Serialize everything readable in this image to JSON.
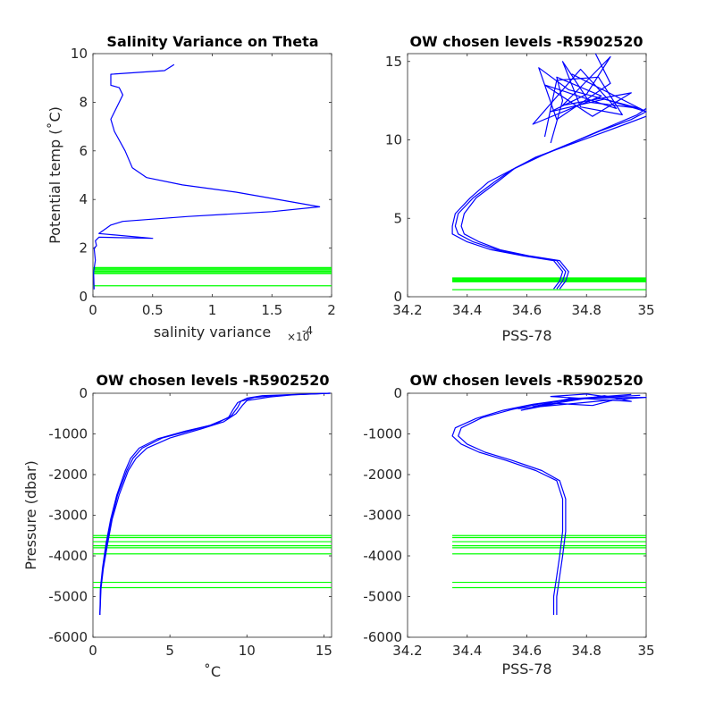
{
  "colors": {
    "profile": "#0000ff",
    "levels": "#00ff00",
    "axis": "#262626"
  },
  "chart_data": [
    {
      "id": "p1",
      "type": "line",
      "title": "Salinity Variance on Theta",
      "xlabel": "salinity variance",
      "x_multiplier": "×10",
      "x_multiplier_exp": "-4",
      "ylabel": "Potential temp (˚C)",
      "xlim": [
        0,
        2
      ],
      "ylim": [
        0,
        10
      ],
      "xticks": [
        0,
        0.5,
        1,
        1.5,
        2
      ],
      "xtick_labels": [
        "0",
        "0.5",
        "1",
        "1.5",
        "2"
      ],
      "yticks": [
        0,
        2,
        4,
        6,
        8,
        10
      ],
      "ytick_labels": [
        "0",
        "2",
        "4",
        "6",
        "8",
        "10"
      ],
      "grid": false,
      "series": [
        {
          "x": [
            0.01,
            0.005,
            0.02,
            0.01,
            0.03,
            0.02,
            0.05,
            0.5,
            0.05,
            0.15,
            0.25,
            0.8,
            1.5,
            1.9,
            1.2,
            0.75,
            0.45,
            0.33,
            0.27,
            0.18,
            0.15,
            0.22,
            0.25,
            0.22,
            0.15,
            0.15,
            0.6,
            0.68
          ],
          "y": [
            0.3,
            1.0,
            1.5,
            2.0,
            2.1,
            2.3,
            2.45,
            2.4,
            2.6,
            2.95,
            3.1,
            3.3,
            3.5,
            3.7,
            4.3,
            4.6,
            4.9,
            5.3,
            6.0,
            6.8,
            7.3,
            8.0,
            8.3,
            8.6,
            8.7,
            9.15,
            9.3,
            9.55
          ]
        }
      ],
      "levels_y": [
        0.45,
        0.95,
        1.0,
        1.05,
        1.1,
        1.15,
        1.2
      ]
    },
    {
      "id": "p2",
      "type": "line",
      "title": "OW chosen levels -R5902520",
      "xlabel": "PSS-78",
      "ylabel": "",
      "xlim": [
        34.2,
        35
      ],
      "ylim": [
        0,
        15.5
      ],
      "xticks": [
        34.2,
        34.4,
        34.6,
        34.8,
        35
      ],
      "xtick_labels": [
        "34.2",
        "34.4",
        "34.6",
        "34.8",
        "35"
      ],
      "yticks": [
        0,
        5,
        10,
        15
      ],
      "ytick_labels": [
        "0",
        "5",
        "10",
        "15"
      ],
      "grid": false,
      "series": [
        {
          "x": [
            34.7,
            34.72,
            34.73,
            34.7,
            34.6,
            34.5,
            34.42,
            34.37,
            34.36,
            34.37,
            34.42,
            34.49,
            34.55,
            34.65,
            34.75,
            34.85,
            34.95,
            35.0
          ],
          "y": [
            0.5,
            1.0,
            1.6,
            2.3,
            2.6,
            3.0,
            3.5,
            4.0,
            4.5,
            5.3,
            6.3,
            7.3,
            8.1,
            9.0,
            9.8,
            10.6,
            11.3,
            11.8
          ]
        },
        {
          "x": [
            34.69,
            34.71,
            34.72,
            34.69,
            34.59,
            34.48,
            34.4,
            34.35,
            34.35,
            34.36,
            34.41,
            34.47,
            34.54,
            34.63,
            34.73,
            34.83,
            34.93,
            35.0
          ],
          "y": [
            0.5,
            1.0,
            1.6,
            2.3,
            2.6,
            3.0,
            3.5,
            4.0,
            4.5,
            5.3,
            6.3,
            7.3,
            8.0,
            8.9,
            9.6,
            10.3,
            11.0,
            11.5
          ]
        },
        {
          "x": [
            34.71,
            34.73,
            34.74,
            34.71,
            34.61,
            34.51,
            34.44,
            34.39,
            34.38,
            34.39,
            34.43,
            34.5,
            34.56,
            34.66,
            34.76,
            34.87,
            34.97,
            35.0
          ],
          "y": [
            0.5,
            1.0,
            1.6,
            2.3,
            2.6,
            3.0,
            3.5,
            4.0,
            4.5,
            5.3,
            6.3,
            7.3,
            8.2,
            9.1,
            9.9,
            10.8,
            11.6,
            12.0
          ]
        },
        {
          "x": [
            34.68,
            34.72,
            34.7,
            34.85,
            34.62,
            34.78,
            34.9,
            34.66,
            34.82,
            34.95,
            34.72,
            34.88,
            34.8,
            34.68,
            34.86,
            35.0,
            34.75
          ],
          "y": [
            9.8,
            12.5,
            14.0,
            12.8,
            11.0,
            14.5,
            12.0,
            13.5,
            11.5,
            13.0,
            12.2,
            15.3,
            12.9,
            11.8,
            12.6,
            11.8,
            14.2
          ]
        },
        {
          "x": [
            34.66,
            34.7,
            34.84,
            34.92,
            34.78,
            34.72,
            34.81,
            34.98,
            34.74,
            34.64,
            34.7,
            34.88,
            34.83
          ],
          "y": [
            10.2,
            13.8,
            14.0,
            11.6,
            12.1,
            15.0,
            12.4,
            12.0,
            13.2,
            14.6,
            11.3,
            13.6,
            15.5
          ]
        }
      ],
      "levels_y": [
        0.45,
        0.95,
        1.0,
        1.05,
        1.1,
        1.15,
        1.2
      ]
    },
    {
      "id": "p3",
      "type": "line",
      "title": "OW chosen levels -R5902520",
      "xlabel": "˚C",
      "ylabel": "Pressure (dbar)",
      "xlim": [
        0,
        15.5
      ],
      "ylim": [
        -6000,
        0
      ],
      "xticks": [
        0,
        5,
        10,
        15
      ],
      "xtick_labels": [
        "0",
        "5",
        "10",
        "15"
      ],
      "yticks": [
        -6000,
        -5000,
        -4000,
        -3000,
        -2000,
        -1000,
        0
      ],
      "ytick_labels": [
        "-6000",
        "-5000",
        "-4000",
        "-3000",
        "-2000",
        "-1000",
        "0"
      ],
      "grid": false,
      "series": [
        {
          "x": [
            0.45,
            0.5,
            0.65,
            0.9,
            1.2,
            1.6,
            2.2,
            2.6,
            3.2,
            4.5,
            6.5,
            8.0,
            9.0,
            9.4,
            9.6,
            10.5,
            12.0,
            15.4
          ],
          "y": [
            -5450,
            -4800,
            -4300,
            -3700,
            -3100,
            -2500,
            -1900,
            -1600,
            -1350,
            -1100,
            -900,
            -750,
            -550,
            -350,
            -200,
            -100,
            -50,
            0
          ]
        },
        {
          "x": [
            0.45,
            0.52,
            0.68,
            0.95,
            1.25,
            1.7,
            2.3,
            2.8,
            3.5,
            5.0,
            7.0,
            8.5,
            9.3,
            9.7,
            10.0,
            11.5,
            13.0,
            15.4
          ],
          "y": [
            -5450,
            -4800,
            -4300,
            -3700,
            -3100,
            -2500,
            -1900,
            -1600,
            -1350,
            -1100,
            -880,
            -700,
            -500,
            -300,
            -180,
            -90,
            -40,
            0
          ]
        },
        {
          "x": [
            0.45,
            0.48,
            0.62,
            0.85,
            1.15,
            1.55,
            2.1,
            2.45,
            3.0,
            4.2,
            6.0,
            7.6,
            8.8,
            9.1,
            9.4,
            10.0,
            11.0,
            15.4
          ],
          "y": [
            -5450,
            -4800,
            -4300,
            -3700,
            -3100,
            -2500,
            -1900,
            -1600,
            -1350,
            -1120,
            -930,
            -790,
            -600,
            -400,
            -230,
            -120,
            -60,
            0
          ]
        }
      ],
      "levels_y": [
        -3500,
        -3550,
        -3650,
        -3750,
        -3800,
        -3950,
        -4650,
        -4780
      ]
    },
    {
      "id": "p4",
      "type": "line",
      "title": "OW chosen levels -R5902520",
      "xlabel": "PSS-78",
      "ylabel": "",
      "xlim": [
        34.2,
        35
      ],
      "ylim": [
        -6000,
        0
      ],
      "xticks": [
        34.2,
        34.4,
        34.6,
        34.8,
        35
      ],
      "xtick_labels": [
        "34.2",
        "34.4",
        "34.6",
        "34.8",
        "35"
      ],
      "yticks": [
        -6000,
        -5000,
        -4000,
        -3000,
        -2000,
        -1000,
        0
      ],
      "ytick_labels": [
        "-6000",
        "-5000",
        "-4000",
        "-3000",
        "-2000",
        "-1000",
        "0"
      ],
      "grid": false,
      "series": [
        {
          "x": [
            34.7,
            34.7,
            34.71,
            34.72,
            34.73,
            34.73,
            34.71,
            34.65,
            34.55,
            34.46,
            34.4,
            34.37,
            34.38,
            34.45,
            34.55,
            34.65,
            34.8,
            34.98
          ],
          "y": [
            -5450,
            -5000,
            -4500,
            -4000,
            -3400,
            -2600,
            -2150,
            -1900,
            -1650,
            -1450,
            -1250,
            -1050,
            -850,
            -600,
            -400,
            -250,
            -120,
            -50
          ]
        },
        {
          "x": [
            34.69,
            34.69,
            34.7,
            34.71,
            34.72,
            34.72,
            34.7,
            34.63,
            34.53,
            34.44,
            34.38,
            34.35,
            34.36,
            34.43,
            34.52,
            34.62,
            34.75,
            34.95
          ],
          "y": [
            -5450,
            -5000,
            -4500,
            -4000,
            -3400,
            -2600,
            -2150,
            -1900,
            -1650,
            -1450,
            -1250,
            -1050,
            -850,
            -620,
            -420,
            -270,
            -140,
            -30
          ]
        },
        {
          "x": [
            34.58,
            34.7,
            34.82,
            34.9,
            35.0,
            34.75,
            34.62,
            34.86,
            34.95,
            34.68,
            34.8,
            34.92,
            34.57
          ],
          "y": [
            -420,
            -250,
            -300,
            -150,
            -100,
            -120,
            -330,
            -60,
            -200,
            -80,
            -20,
            -140,
            -380
          ]
        }
      ],
      "levels_y": [
        -3500,
        -3550,
        -3650,
        -3750,
        -3800,
        -3950,
        -4650,
        -4780
      ]
    }
  ]
}
